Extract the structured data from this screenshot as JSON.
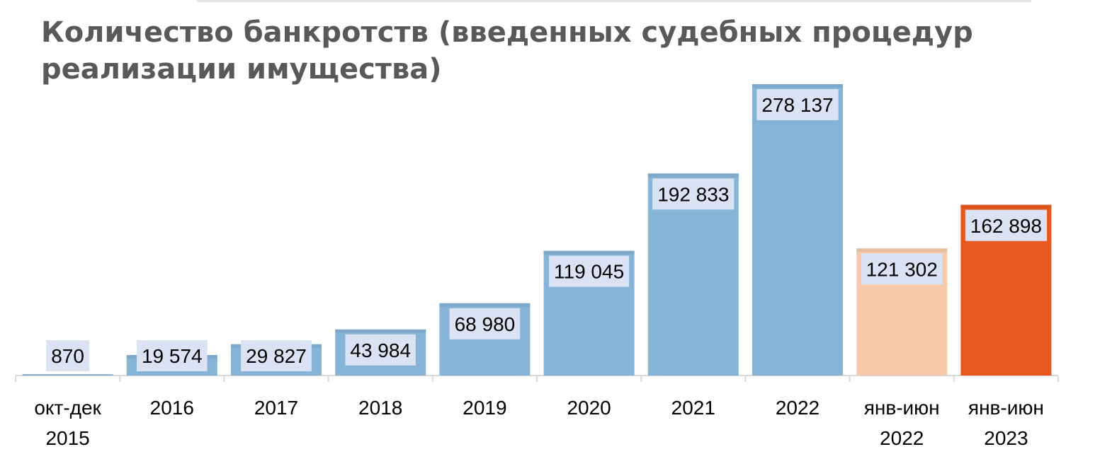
{
  "chart_data": {
    "type": "bar",
    "title": "Количество банкротств (введенных судебных процедур реализации имущества)",
    "title_lines": [
      "Количество банкротств (введенных судебных процедур",
      "реализации имущества)"
    ],
    "categories": [
      [
        "окт-дек",
        "2015"
      ],
      [
        "2016"
      ],
      [
        "2017"
      ],
      [
        "2018"
      ],
      [
        "2019"
      ],
      [
        "2020"
      ],
      [
        "2021"
      ],
      [
        "2022"
      ],
      [
        "янв-июн",
        "2022"
      ],
      [
        "янв-июн",
        "2023"
      ]
    ],
    "values": [
      870,
      19574,
      29827,
      43984,
      68980,
      119045,
      192833,
      278137,
      121302,
      162898
    ],
    "value_labels": [
      "870",
      "19 574",
      "29 827",
      "43 984",
      "68 980",
      "119 045",
      "192 833",
      "278 137",
      "121 302",
      "162 898"
    ],
    "bar_colors": [
      "#86b4d7",
      "#86b4d7",
      "#86b4d7",
      "#86b4d7",
      "#86b4d7",
      "#86b4d7",
      "#86b4d7",
      "#86b4d7",
      "#f6c9a9",
      "#e9581f"
    ],
    "label_box_color": "#dae2f3",
    "axis_color": "#d9d9d9",
    "text_color": "#000000",
    "title_color": "#595959",
    "xlabel": "",
    "ylabel": "",
    "ylim": [
      0,
      278137
    ],
    "grid": false,
    "legend": "none"
  }
}
